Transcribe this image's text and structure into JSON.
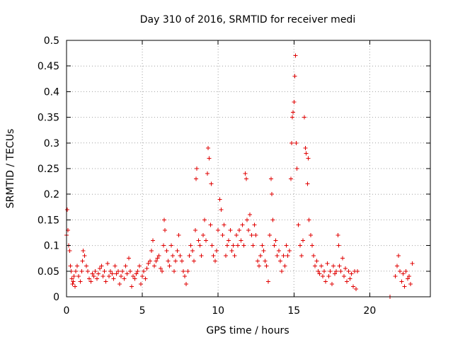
{
  "chart_data": {
    "type": "scatter",
    "title": "Day 310 of 2016, SRMTID for receiver medi",
    "xlabel": "GPS time / hours",
    "ylabel": "SRMTID / TECUs",
    "xlim": [
      0,
      24
    ],
    "ylim": [
      0,
      0.5
    ],
    "x_ticks": [
      "0",
      "5",
      "10",
      "15",
      "20"
    ],
    "x_tick_values": [
      0,
      5,
      10,
      15,
      20
    ],
    "y_ticks": [
      "0",
      "0.05",
      "0.1",
      "0.15",
      "0.2",
      "0.25",
      "0.3",
      "0.35",
      "0.4",
      "0.45",
      "0.5"
    ],
    "y_tick_values": [
      0,
      0.05,
      0.1,
      0.15,
      0.2,
      0.25,
      0.3,
      0.35,
      0.4,
      0.45,
      0.5
    ],
    "grid": true,
    "marker": "plus",
    "color": "#e00000",
    "series": [
      {
        "name": "SRMTID",
        "points": [
          [
            0.0,
            0.12
          ],
          [
            0.05,
            0.17
          ],
          [
            0.1,
            0.13
          ],
          [
            0.15,
            0.1
          ],
          [
            0.2,
            0.09
          ],
          [
            0.25,
            0.06
          ],
          [
            0.3,
            0.05
          ],
          [
            0.35,
            0.035
          ],
          [
            0.4,
            0.025
          ],
          [
            0.45,
            0.03
          ],
          [
            0.5,
            0.04
          ],
          [
            0.55,
            0.02
          ],
          [
            0.6,
            0.05
          ],
          [
            0.7,
            0.06
          ],
          [
            0.8,
            0.04
          ],
          [
            0.9,
            0.03
          ],
          [
            1.0,
            0.05
          ],
          [
            1.05,
            0.07
          ],
          [
            1.1,
            0.09
          ],
          [
            1.2,
            0.08
          ],
          [
            1.3,
            0.06
          ],
          [
            1.4,
            0.05
          ],
          [
            1.5,
            0.035
          ],
          [
            1.6,
            0.03
          ],
          [
            1.7,
            0.045
          ],
          [
            1.8,
            0.04
          ],
          [
            1.9,
            0.05
          ],
          [
            2.0,
            0.035
          ],
          [
            2.1,
            0.045
          ],
          [
            2.2,
            0.055
          ],
          [
            2.3,
            0.06
          ],
          [
            2.4,
            0.04
          ],
          [
            2.5,
            0.05
          ],
          [
            2.6,
            0.03
          ],
          [
            2.7,
            0.065
          ],
          [
            2.8,
            0.04
          ],
          [
            2.9,
            0.05
          ],
          [
            3.0,
            0.045
          ],
          [
            3.1,
            0.035
          ],
          [
            3.2,
            0.06
          ],
          [
            3.3,
            0.045
          ],
          [
            3.4,
            0.05
          ],
          [
            3.5,
            0.025
          ],
          [
            3.6,
            0.04
          ],
          [
            3.7,
            0.05
          ],
          [
            3.8,
            0.035
          ],
          [
            3.9,
            0.06
          ],
          [
            4.0,
            0.045
          ],
          [
            4.1,
            0.075
          ],
          [
            4.2,
            0.05
          ],
          [
            4.3,
            0.02
          ],
          [
            4.4,
            0.04
          ],
          [
            4.5,
            0.035
          ],
          [
            4.6,
            0.045
          ],
          [
            4.7,
            0.05
          ],
          [
            4.8,
            0.06
          ],
          [
            4.9,
            0.025
          ],
          [
            5.0,
            0.04
          ],
          [
            5.1,
            0.05
          ],
          [
            5.2,
            0.035
          ],
          [
            5.3,
            0.055
          ],
          [
            5.4,
            0.065
          ],
          [
            5.5,
            0.07
          ],
          [
            5.6,
            0.09
          ],
          [
            5.7,
            0.11
          ],
          [
            5.8,
            0.06
          ],
          [
            5.9,
            0.07
          ],
          [
            6.0,
            0.075
          ],
          [
            6.1,
            0.08
          ],
          [
            6.2,
            0.055
          ],
          [
            6.3,
            0.05
          ],
          [
            6.4,
            0.1
          ],
          [
            6.45,
            0.15
          ],
          [
            6.5,
            0.13
          ],
          [
            6.6,
            0.09
          ],
          [
            6.7,
            0.07
          ],
          [
            6.8,
            0.06
          ],
          [
            6.9,
            0.1
          ],
          [
            7.0,
            0.08
          ],
          [
            7.1,
            0.05
          ],
          [
            7.2,
            0.07
          ],
          [
            7.3,
            0.09
          ],
          [
            7.4,
            0.12
          ],
          [
            7.5,
            0.08
          ],
          [
            7.6,
            0.07
          ],
          [
            7.7,
            0.05
          ],
          [
            7.8,
            0.04
          ],
          [
            7.9,
            0.025
          ],
          [
            8.0,
            0.05
          ],
          [
            8.1,
            0.08
          ],
          [
            8.2,
            0.1
          ],
          [
            8.3,
            0.09
          ],
          [
            8.4,
            0.07
          ],
          [
            8.5,
            0.13
          ],
          [
            8.55,
            0.23
          ],
          [
            8.6,
            0.25
          ],
          [
            8.7,
            0.11
          ],
          [
            8.8,
            0.1
          ],
          [
            8.9,
            0.08
          ],
          [
            9.0,
            0.12
          ],
          [
            9.1,
            0.15
          ],
          [
            9.2,
            0.11
          ],
          [
            9.3,
            0.24
          ],
          [
            9.35,
            0.29
          ],
          [
            9.4,
            0.27
          ],
          [
            9.5,
            0.14
          ],
          [
            9.55,
            0.22
          ],
          [
            9.6,
            0.1
          ],
          [
            9.7,
            0.08
          ],
          [
            9.8,
            0.07
          ],
          [
            9.9,
            0.09
          ],
          [
            10.0,
            0.13
          ],
          [
            10.1,
            0.19
          ],
          [
            10.2,
            0.17
          ],
          [
            10.3,
            0.12
          ],
          [
            10.4,
            0.14
          ],
          [
            10.5,
            0.08
          ],
          [
            10.6,
            0.1
          ],
          [
            10.7,
            0.11
          ],
          [
            10.8,
            0.13
          ],
          [
            10.9,
            0.09
          ],
          [
            11.0,
            0.1
          ],
          [
            11.1,
            0.08
          ],
          [
            11.2,
            0.12
          ],
          [
            11.3,
            0.1
          ],
          [
            11.4,
            0.13
          ],
          [
            11.5,
            0.11
          ],
          [
            11.6,
            0.14
          ],
          [
            11.7,
            0.1
          ],
          [
            11.8,
            0.24
          ],
          [
            11.85,
            0.23
          ],
          [
            11.9,
            0.15
          ],
          [
            12.0,
            0.13
          ],
          [
            12.1,
            0.16
          ],
          [
            12.2,
            0.12
          ],
          [
            12.3,
            0.1
          ],
          [
            12.4,
            0.14
          ],
          [
            12.5,
            0.12
          ],
          [
            12.6,
            0.07
          ],
          [
            12.7,
            0.06
          ],
          [
            12.8,
            0.08
          ],
          [
            12.9,
            0.1
          ],
          [
            13.0,
            0.09
          ],
          [
            13.1,
            0.07
          ],
          [
            13.2,
            0.06
          ],
          [
            13.3,
            0.03
          ],
          [
            13.4,
            0.12
          ],
          [
            13.5,
            0.23
          ],
          [
            13.55,
            0.2
          ],
          [
            13.6,
            0.15
          ],
          [
            13.7,
            0.1
          ],
          [
            13.8,
            0.11
          ],
          [
            13.9,
            0.08
          ],
          [
            14.0,
            0.09
          ],
          [
            14.1,
            0.07
          ],
          [
            14.2,
            0.05
          ],
          [
            14.3,
            0.08
          ],
          [
            14.4,
            0.06
          ],
          [
            14.5,
            0.1
          ],
          [
            14.6,
            0.08
          ],
          [
            14.7,
            0.09
          ],
          [
            14.8,
            0.23
          ],
          [
            14.85,
            0.3
          ],
          [
            14.9,
            0.35
          ],
          [
            14.95,
            0.36
          ],
          [
            15.0,
            0.38
          ],
          [
            15.05,
            0.43
          ],
          [
            15.1,
            0.47
          ],
          [
            15.15,
            0.3
          ],
          [
            15.2,
            0.25
          ],
          [
            15.3,
            0.14
          ],
          [
            15.4,
            0.1
          ],
          [
            15.5,
            0.08
          ],
          [
            15.6,
            0.11
          ],
          [
            15.7,
            0.35
          ],
          [
            15.75,
            0.29
          ],
          [
            15.8,
            0.28
          ],
          [
            15.9,
            0.22
          ],
          [
            15.95,
            0.27
          ],
          [
            16.0,
            0.15
          ],
          [
            16.1,
            0.12
          ],
          [
            16.2,
            0.1
          ],
          [
            16.3,
            0.08
          ],
          [
            16.4,
            0.06
          ],
          [
            16.5,
            0.07
          ],
          [
            16.6,
            0.05
          ],
          [
            16.7,
            0.045
          ],
          [
            16.8,
            0.06
          ],
          [
            16.9,
            0.04
          ],
          [
            17.0,
            0.05
          ],
          [
            17.1,
            0.03
          ],
          [
            17.2,
            0.065
          ],
          [
            17.3,
            0.04
          ],
          [
            17.4,
            0.05
          ],
          [
            17.5,
            0.025
          ],
          [
            17.6,
            0.06
          ],
          [
            17.7,
            0.045
          ],
          [
            17.8,
            0.05
          ],
          [
            17.9,
            0.12
          ],
          [
            17.95,
            0.1
          ],
          [
            18.0,
            0.06
          ],
          [
            18.1,
            0.05
          ],
          [
            18.2,
            0.075
          ],
          [
            18.3,
            0.04
          ],
          [
            18.4,
            0.055
          ],
          [
            18.5,
            0.03
          ],
          [
            18.6,
            0.05
          ],
          [
            18.7,
            0.035
          ],
          [
            18.8,
            0.045
          ],
          [
            18.9,
            0.02
          ],
          [
            19.0,
            0.05
          ],
          [
            19.1,
            0.015
          ],
          [
            19.2,
            0.05
          ],
          [
            21.35,
            0.0
          ],
          [
            21.7,
            0.04
          ],
          [
            21.8,
            0.06
          ],
          [
            21.9,
            0.08
          ],
          [
            22.0,
            0.05
          ],
          [
            22.1,
            0.03
          ],
          [
            22.2,
            0.045
          ],
          [
            22.3,
            0.02
          ],
          [
            22.4,
            0.05
          ],
          [
            22.5,
            0.035
          ],
          [
            22.6,
            0.04
          ],
          [
            22.7,
            0.025
          ],
          [
            22.8,
            0.065
          ]
        ]
      }
    ]
  }
}
